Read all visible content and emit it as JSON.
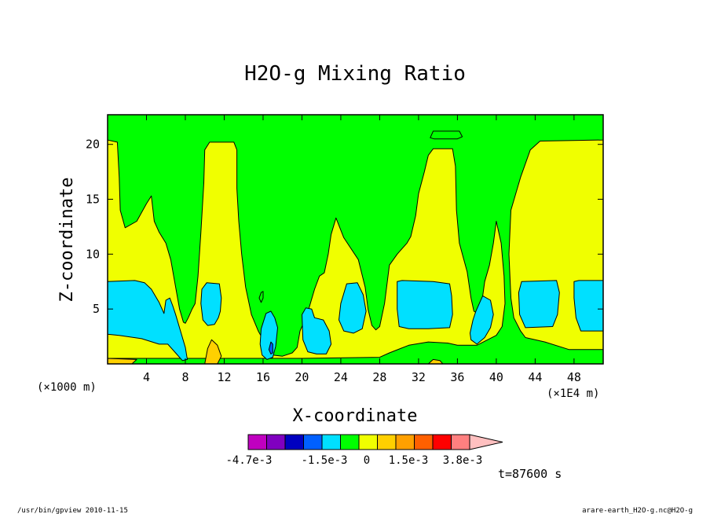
{
  "chart_data": {
    "type": "heatmap",
    "title": "H2O-g Mixing Ratio",
    "xlabel": "X-coordinate",
    "ylabel": "Z-coordinate",
    "x_units_left": "(×1000 m)",
    "x_units_right": "(×1E4 m)",
    "x_ticks": [
      4,
      8,
      12,
      16,
      20,
      24,
      28,
      32,
      36,
      40,
      44,
      48
    ],
    "y_ticks": [
      5,
      10,
      15,
      20
    ],
    "xlim": [
      0,
      51
    ],
    "ylim": [
      0,
      22.7
    ],
    "colorbar": {
      "labels": [
        "-4.7e-3",
        "-1.5e-3",
        "0",
        "1.5e-3",
        "3.8e-3"
      ],
      "colors": [
        "#c000c0",
        "#8000c0",
        "#0000c0",
        "#0060ff",
        "#00e0ff",
        "#00ff00",
        "#f0ff00",
        "#ffd000",
        "#ffa000",
        "#ff6000",
        "#ff0000",
        "#ff8080",
        "#ffc0c0"
      ]
    },
    "time_label": "t=87600 s",
    "regions": [
      {
        "level": "yellow",
        "color": "#f0ff00",
        "polygons": [
          [
            [
              0,
              0
            ],
            [
              51,
              0
            ],
            [
              51,
              22.7
            ],
            [
              0,
              22.7
            ]
          ]
        ]
      },
      {
        "level": "green",
        "color": "#00ff00",
        "polygons": [
          [
            [
              0,
              0
            ],
            [
              51,
              0
            ],
            [
              51,
              1.3
            ],
            [
              47.5,
              1.3
            ],
            [
              45,
              2
            ],
            [
              43,
              2.4
            ],
            [
              42.5,
              3
            ],
            [
              41.8,
              4.2
            ],
            [
              41.5,
              6
            ],
            [
              41.3,
              10
            ],
            [
              41.5,
              14
            ],
            [
              42.5,
              17
            ],
            [
              43.5,
              19.5
            ],
            [
              44.5,
              20.3
            ],
            [
              51,
              20.4
            ],
            [
              51,
              22.7
            ],
            [
              0,
              22.7
            ],
            [
              0,
              20.4
            ],
            [
              1,
              20.2
            ],
            [
              1.2,
              17
            ],
            [
              1.3,
              14
            ],
            [
              1.8,
              12.4
            ],
            [
              3,
              13
            ],
            [
              4,
              14.6
            ],
            [
              4.5,
              15.3
            ],
            [
              4.8,
              13
            ],
            [
              5.3,
              12
            ],
            [
              6,
              11
            ],
            [
              6.5,
              9.5
            ],
            [
              7,
              7
            ],
            [
              7.4,
              5
            ],
            [
              7.8,
              3.8
            ],
            [
              8,
              3.7
            ],
            [
              8.3,
              4.2
            ],
            [
              8.7,
              5
            ],
            [
              9,
              5.5
            ],
            [
              9.3,
              8
            ],
            [
              9.6,
              12
            ],
            [
              9.9,
              16.5
            ],
            [
              10,
              19.5
            ],
            [
              10.5,
              20.2
            ],
            [
              13,
              20.2
            ],
            [
              13.3,
              19.5
            ],
            [
              13.3,
              16
            ],
            [
              13.5,
              13
            ],
            [
              13.8,
              10
            ],
            [
              14.2,
              7
            ],
            [
              14.8,
              4.5
            ],
            [
              15.5,
              3
            ],
            [
              16,
              2.2
            ],
            [
              16.5,
              1.2
            ],
            [
              17,
              0.8
            ],
            [
              18,
              0.7
            ],
            [
              18,
              0.7
            ],
            [
              19,
              1
            ],
            [
              19.5,
              1.5
            ],
            [
              19.8,
              3
            ],
            [
              20.5,
              4.4
            ],
            [
              21.3,
              6.8
            ],
            [
              21.8,
              8
            ],
            [
              22.3,
              8.3
            ],
            [
              22.7,
              10
            ],
            [
              23,
              11.8
            ],
            [
              23.5,
              13.3
            ],
            [
              24.3,
              11.5
            ],
            [
              25.8,
              9.5
            ],
            [
              26.5,
              7
            ],
            [
              26.8,
              5
            ],
            [
              27.2,
              3.5
            ],
            [
              27.6,
              3.1
            ],
            [
              28,
              3.4
            ],
            [
              28.5,
              5.5
            ],
            [
              29,
              9
            ],
            [
              29.8,
              10
            ],
            [
              30.8,
              11
            ],
            [
              31.2,
              11.6
            ],
            [
              31.7,
              13.5
            ],
            [
              32,
              15.5
            ],
            [
              32.6,
              17.5
            ],
            [
              33,
              19
            ],
            [
              33.5,
              19.6
            ],
            [
              35.5,
              19.6
            ],
            [
              35.8,
              18
            ],
            [
              35.9,
              14
            ],
            [
              36.2,
              11
            ],
            [
              36.6,
              9.7
            ],
            [
              37,
              8.4
            ],
            [
              37.4,
              6
            ],
            [
              37.7,
              4.8
            ],
            [
              38.1,
              4.6
            ],
            [
              38.5,
              5.5
            ],
            [
              38.8,
              7.5
            ],
            [
              39.3,
              9
            ],
            [
              39.7,
              11
            ],
            [
              40,
              13
            ],
            [
              40.5,
              11
            ],
            [
              40.8,
              8
            ],
            [
              40.9,
              5.5
            ],
            [
              40.6,
              3.4
            ],
            [
              40,
              2.6
            ],
            [
              38,
              1.7
            ],
            [
              36,
              1.7
            ],
            [
              35,
              1.9
            ],
            [
              33,
              2
            ],
            [
              31,
              1.7
            ],
            [
              29,
              1
            ],
            [
              28,
              0.6
            ],
            [
              20,
              0.5
            ],
            [
              0,
              0.5
            ]
          ]
        ]
      },
      {
        "level": "green-top-blob",
        "color": "#00ff00",
        "polygons": [
          [
            [
              33.2,
              20.6
            ],
            [
              33.5,
              21.2
            ],
            [
              36.2,
              21.2
            ],
            [
              36.5,
              20.7
            ],
            [
              36,
              20.5
            ],
            [
              33.6,
              20.5
            ]
          ]
        ]
      },
      {
        "level": "cyan",
        "color": "#00e0ff",
        "polygons": [
          [
            [
              0,
              7.5
            ],
            [
              2.8,
              7.6
            ],
            [
              3.8,
              7.4
            ],
            [
              4.5,
              6.8
            ],
            [
              5.3,
              5.6
            ],
            [
              5.8,
              4.6
            ],
            [
              6,
              5.8
            ],
            [
              6.4,
              6
            ],
            [
              6.7,
              5.3
            ],
            [
              7,
              4.5
            ],
            [
              7.5,
              3
            ],
            [
              8,
              1.5
            ],
            [
              8.2,
              0.4
            ],
            [
              7.7,
              0.3
            ],
            [
              7,
              1
            ],
            [
              6.2,
              1.8
            ],
            [
              5.3,
              1.8
            ],
            [
              3.5,
              2.3
            ],
            [
              1.2,
              2.6
            ],
            [
              0,
              2.7
            ]
          ],
          [
            [
              9.7,
              6.8
            ],
            [
              10.2,
              7.4
            ],
            [
              11.5,
              7.3
            ],
            [
              11.7,
              6
            ],
            [
              11.6,
              4.8
            ],
            [
              11.4,
              4.2
            ],
            [
              11,
              3.6
            ],
            [
              10.3,
              3.5
            ],
            [
              9.8,
              4
            ],
            [
              9.6,
              5.5
            ]
          ],
          [
            [
              15.8,
              3.2
            ],
            [
              16.3,
              4.6
            ],
            [
              16.8,
              4.8
            ],
            [
              17.2,
              4.2
            ],
            [
              17.5,
              3.3
            ],
            [
              17.3,
              1.6
            ],
            [
              17,
              0.6
            ],
            [
              16.4,
              0.4
            ],
            [
              15.9,
              0.8
            ],
            [
              15.7,
              1.8
            ]
          ],
          [
            [
              20,
              4.5
            ],
            [
              20.4,
              5.1
            ],
            [
              21,
              5
            ],
            [
              21.3,
              4.2
            ],
            [
              22.2,
              4
            ],
            [
              22.8,
              3
            ],
            [
              23,
              1.8
            ],
            [
              22.5,
              0.9
            ],
            [
              21.5,
              0.9
            ],
            [
              20.6,
              1.1
            ],
            [
              20.1,
              2.2
            ]
          ],
          [
            [
              23.8,
              4
            ],
            [
              24,
              5.5
            ],
            [
              24.6,
              7.3
            ],
            [
              25.7,
              7.4
            ],
            [
              26.3,
              6.3
            ],
            [
              26.6,
              4.8
            ],
            [
              26.2,
              3.2
            ],
            [
              25.3,
              2.8
            ],
            [
              24.3,
              3
            ]
          ],
          [
            [
              29.8,
              7.5
            ],
            [
              30.3,
              7.6
            ],
            [
              33.5,
              7.5
            ],
            [
              35.2,
              7.3
            ],
            [
              35.4,
              6.2
            ],
            [
              35.5,
              4.5
            ],
            [
              35.2,
              3.3
            ],
            [
              33,
              3.2
            ],
            [
              31,
              3.2
            ],
            [
              30,
              3.4
            ],
            [
              29.8,
              5
            ]
          ],
          [
            [
              37.3,
              2.8
            ],
            [
              37.6,
              4
            ],
            [
              37.9,
              4.8
            ],
            [
              38.6,
              6.2
            ],
            [
              39.4,
              5.8
            ],
            [
              39.7,
              4.5
            ],
            [
              39.4,
              3.3
            ],
            [
              38.8,
              2.4
            ],
            [
              38,
              1.8
            ],
            [
              37.4,
              2.2
            ]
          ],
          [
            [
              42.3,
              6.5
            ],
            [
              42.6,
              7.5
            ],
            [
              46.2,
              7.6
            ],
            [
              46.5,
              6.5
            ],
            [
              46.3,
              4.5
            ],
            [
              45.8,
              3.4
            ],
            [
              43,
              3.3
            ],
            [
              42.4,
              4.5
            ]
          ],
          [
            [
              48,
              7.5
            ],
            [
              48.5,
              7.6
            ],
            [
              51,
              7.6
            ],
            [
              51,
              3
            ],
            [
              48.7,
              3
            ],
            [
              48.2,
              4.2
            ],
            [
              48,
              6
            ]
          ]
        ]
      },
      {
        "level": "orange-small",
        "color": "#ffd000",
        "polygons": [
          [
            [
              0,
              0
            ],
            [
              2.5,
              0
            ],
            [
              3,
              0.4
            ],
            [
              0,
              0.5
            ]
          ],
          [
            [
              10,
              0
            ],
            [
              11.3,
              0
            ],
            [
              11.7,
              0.7
            ],
            [
              11.3,
              1.7
            ],
            [
              10.7,
              2.2
            ],
            [
              10.3,
              1.4
            ]
          ],
          [
            [
              33,
              0
            ],
            [
              34.5,
              0
            ],
            [
              34.2,
              0.3
            ],
            [
              33.5,
              0.4
            ]
          ]
        ]
      },
      {
        "level": "blue-small",
        "color": "#0060ff",
        "polygons": [
          [
            [
              16.6,
              1.3
            ],
            [
              16.8,
              2
            ],
            [
              17,
              1.8
            ],
            [
              17,
              1
            ],
            [
              16.8,
              0.9
            ]
          ]
        ]
      },
      {
        "level": "green-tiny",
        "color": "#00ff00",
        "polygons": [
          [
            [
              15.6,
              6
            ],
            [
              15.8,
              6.5
            ],
            [
              16,
              6.6
            ],
            [
              16,
              6
            ],
            [
              15.8,
              5.6
            ]
          ]
        ]
      }
    ]
  },
  "footer": {
    "left": "/usr/bin/gpview  2010-11-15",
    "right": "arare-earth_H2O-g.nc@H2O-g"
  }
}
